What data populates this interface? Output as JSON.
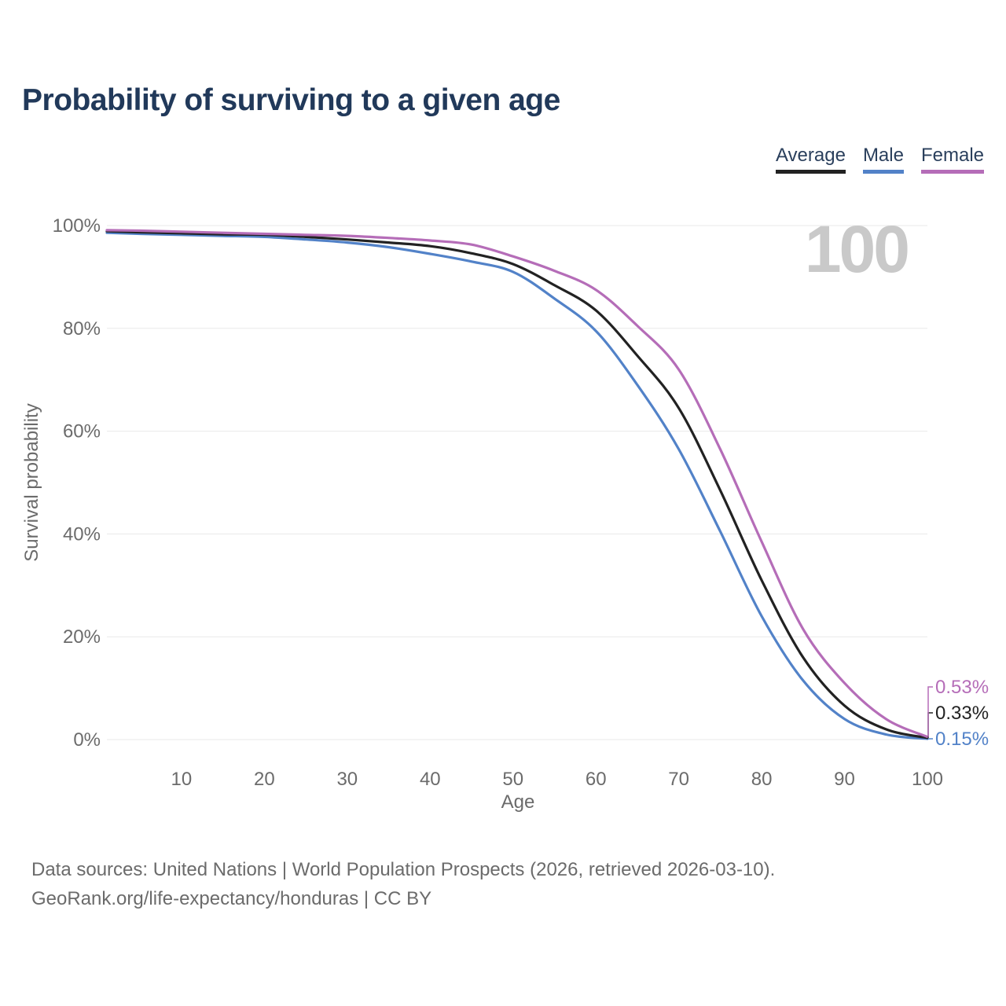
{
  "title": "Probability of surviving to a given age",
  "legend": [
    {
      "label": "Average",
      "color": "#222222"
    },
    {
      "label": "Male",
      "color": "#5282c8"
    },
    {
      "label": "Female",
      "color": "#b56db8"
    }
  ],
  "watermark": "100",
  "footer": {
    "line1": "Data sources: United Nations | World Population Prospects (2026, retrieved 2026-03-10).",
    "line2": "GeoRank.org/life-expectancy/honduras | CC BY"
  },
  "chart_data": {
    "type": "line",
    "title": "Probability of surviving to a given age",
    "xlabel": "Age",
    "ylabel": "Survival probability",
    "xlim": [
      1,
      100
    ],
    "ylim": [
      0,
      100
    ],
    "grid": "horizontal",
    "legend_position": "top-right",
    "x_ticks": [
      10,
      20,
      30,
      40,
      50,
      60,
      70,
      80,
      90,
      100
    ],
    "x_tick_labels": [
      "10",
      "20",
      "30",
      "40",
      "50",
      "60",
      "70",
      "80",
      "90",
      "100"
    ],
    "y_ticks": [
      0,
      20,
      40,
      60,
      80,
      100
    ],
    "y_tick_labels": [
      "0%",
      "20%",
      "40%",
      "60%",
      "80%",
      "100%"
    ],
    "x": [
      1,
      5,
      10,
      15,
      20,
      25,
      30,
      35,
      40,
      45,
      50,
      55,
      60,
      65,
      70,
      75,
      80,
      85,
      90,
      95,
      100
    ],
    "series": [
      {
        "name": "Average",
        "color": "#222222",
        "end_label": "0.33%",
        "values": [
          98.9,
          98.7,
          98.5,
          98.3,
          98.2,
          97.8,
          97.3,
          96.7,
          96.0,
          94.6,
          92.5,
          88.4,
          83.5,
          74.7,
          64.5,
          48.5,
          31.0,
          16.0,
          6.6,
          2.0,
          0.33
        ]
      },
      {
        "name": "Male",
        "color": "#5282c8",
        "end_label": "0.15%",
        "values": [
          98.6,
          98.4,
          98.2,
          98.0,
          97.8,
          97.3,
          96.7,
          95.8,
          94.5,
          93.0,
          91.0,
          85.8,
          79.5,
          69.0,
          56.5,
          40.5,
          24.0,
          11.5,
          4.0,
          1.0,
          0.15
        ]
      },
      {
        "name": "Female",
        "color": "#b56db8",
        "end_label": "0.53%",
        "values": [
          99.1,
          99.0,
          98.8,
          98.6,
          98.4,
          98.2,
          98.0,
          97.6,
          97.1,
          96.3,
          94.0,
          91.2,
          87.5,
          80.5,
          72.0,
          56.5,
          38.5,
          21.5,
          11.0,
          4.0,
          0.53
        ]
      }
    ]
  }
}
